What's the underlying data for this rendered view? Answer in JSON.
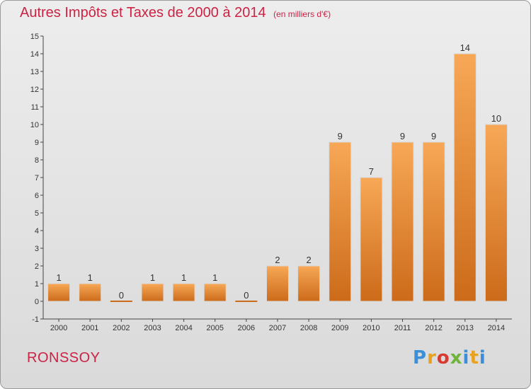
{
  "chart_data": {
    "type": "bar",
    "title": "Autres Impôts et Taxes de 2000 à 2014",
    "subtitle": "(en milliers d'€)",
    "categories": [
      "2000",
      "2001",
      "2002",
      "2003",
      "2004",
      "2005",
      "2006",
      "2007",
      "2008",
      "2009",
      "2010",
      "2011",
      "2012",
      "2013",
      "2014"
    ],
    "values": [
      1,
      1,
      0,
      1,
      1,
      1,
      0,
      2,
      2,
      9,
      7,
      9,
      9,
      14,
      10
    ],
    "ylim": [
      -1,
      15
    ],
    "yticks": [
      -1,
      0,
      1,
      2,
      3,
      4,
      5,
      6,
      7,
      8,
      9,
      10,
      11,
      12,
      13,
      14,
      15
    ],
    "grid": false,
    "colors": {
      "bar_light": "#f7a856",
      "bar_dark": "#cc6b1a",
      "text": "#cc2244"
    }
  },
  "footer": {
    "place": "RONSSOY"
  },
  "logo": {
    "letters": [
      "P",
      "r",
      "o",
      "x",
      "i",
      "t",
      "i"
    ]
  }
}
